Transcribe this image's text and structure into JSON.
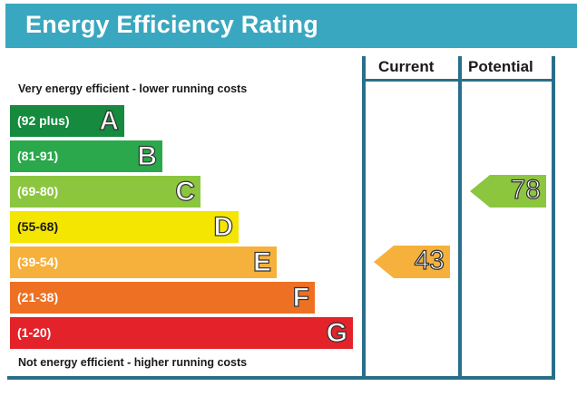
{
  "title": "Energy Efficiency Rating",
  "columns": {
    "current": "Current",
    "potential": "Potential"
  },
  "notes": {
    "top": "Very energy efficient - lower running costs",
    "bottom": "Not energy efficient - higher running costs"
  },
  "chart_data": {
    "type": "bar",
    "bands": [
      {
        "range": "(92 plus)",
        "letter": "A",
        "color": "#168a3e"
      },
      {
        "range": "(81-91)",
        "letter": "B",
        "color": "#2aa84b"
      },
      {
        "range": "(69-80)",
        "letter": "C",
        "color": "#8cc63f"
      },
      {
        "range": "(55-68)",
        "letter": "D",
        "color": "#f4e600"
      },
      {
        "range": "(39-54)",
        "letter": "E",
        "color": "#f6b13c"
      },
      {
        "range": "(21-38)",
        "letter": "F",
        "color": "#ee7023"
      },
      {
        "range": "(1-20)",
        "letter": "G",
        "color": "#e3222a"
      }
    ],
    "current": {
      "value": 43,
      "band": "E",
      "color": "#f6b13c"
    },
    "potential": {
      "value": 78,
      "band": "C",
      "color": "#8cc63f"
    }
  }
}
